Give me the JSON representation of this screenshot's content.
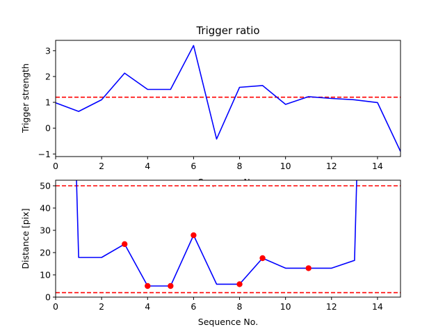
{
  "figure": {
    "background": "#ffffff"
  },
  "chart_data": [
    {
      "type": "line",
      "title": "Trigger ratio",
      "xlabel": "Sequence No.",
      "ylabel": "Trigger strength",
      "xlim": [
        0,
        15
      ],
      "ylim": [
        -1.1,
        3.4
      ],
      "xticks": [
        0,
        2,
        4,
        6,
        8,
        10,
        12,
        14
      ],
      "yticks": [
        -1,
        0,
        1,
        2,
        3
      ],
      "grid": false,
      "series": [
        {
          "color": "#0000ff",
          "x": [
            0,
            1,
            2,
            3,
            4,
            5,
            6,
            7,
            8,
            9,
            10,
            11,
            12,
            13,
            14,
            15
          ],
          "y": [
            0.98,
            0.65,
            1.1,
            2.13,
            1.5,
            1.5,
            3.2,
            -0.42,
            1.58,
            1.65,
            0.92,
            1.22,
            1.15,
            1.1,
            0.99,
            -0.9
          ]
        }
      ],
      "hlines": [
        {
          "y": 1.2,
          "color": "#ff0000",
          "style": "dashed"
        }
      ]
    },
    {
      "type": "line",
      "title": "",
      "xlabel": "Sequence No.",
      "ylabel": "Distance [pix]",
      "xlim": [
        0,
        15
      ],
      "ylim": [
        0,
        52.5
      ],
      "xticks": [
        0,
        2,
        4,
        6,
        8,
        10,
        12,
        14
      ],
      "yticks": [
        0,
        10,
        20,
        30,
        40,
        50
      ],
      "grid": false,
      "series": [
        {
          "color": "#0000ff",
          "x": [
            0.9,
            1,
            2,
            3,
            4,
            5,
            6,
            7,
            8,
            9,
            10,
            11,
            12,
            13,
            13.1
          ],
          "y": [
            55,
            17.8,
            17.8,
            23.8,
            5,
            5,
            27.8,
            5.8,
            5.8,
            17.5,
            13,
            13,
            13,
            16.5,
            55
          ]
        }
      ],
      "markers": {
        "color": "#ff0000",
        "x": [
          3,
          4,
          5,
          6,
          8,
          9,
          11
        ],
        "y": [
          23.8,
          5,
          5,
          27.8,
          5.8,
          17.5,
          13
        ]
      },
      "hlines": [
        {
          "y": 50,
          "color": "#ff0000",
          "style": "dashed"
        },
        {
          "y": 2,
          "color": "#ff0000",
          "style": "dashed"
        }
      ]
    }
  ]
}
